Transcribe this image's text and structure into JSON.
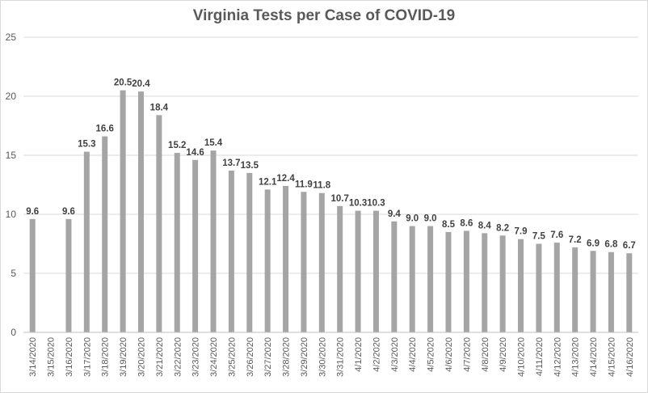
{
  "chart_data": {
    "type": "bar",
    "title": "Virginia Tests per Case of COVID-19",
    "xlabel": "",
    "ylabel": "",
    "ylim": [
      0,
      25
    ],
    "yticks": [
      0,
      5,
      10,
      15,
      20,
      25
    ],
    "grid": true,
    "legend": "none",
    "bar_color": "#a5a5a5",
    "categories": [
      "3/14/2020",
      "3/15/2020",
      "3/16/2020",
      "3/17/2020",
      "3/18/2020",
      "3/19/2020",
      "3/20/2020",
      "3/21/2020",
      "3/22/2020",
      "3/23/2020",
      "3/24/2020",
      "3/25/2020",
      "3/26/2020",
      "3/27/2020",
      "3/28/2020",
      "3/29/2020",
      "3/30/2020",
      "3/31/2020",
      "4/1/2020",
      "4/2/2020",
      "4/3/2020",
      "4/4/2020",
      "4/5/2020",
      "4/6/2020",
      "4/7/2020",
      "4/8/2020",
      "4/9/2020",
      "4/10/2020",
      "4/11/2020",
      "4/12/2020",
      "4/13/2020",
      "4/14/2020",
      "4/15/2020",
      "4/16/2020"
    ],
    "values": [
      9.6,
      null,
      9.6,
      15.3,
      16.6,
      20.5,
      20.4,
      18.4,
      15.2,
      14.6,
      15.4,
      13.7,
      13.5,
      12.1,
      12.4,
      11.9,
      11.8,
      10.7,
      10.3,
      10.3,
      9.4,
      9.0,
      9.0,
      8.5,
      8.6,
      8.4,
      8.2,
      7.9,
      7.5,
      7.6,
      7.2,
      6.9,
      6.8,
      6.7
    ],
    "data_labels": [
      "9.6",
      "",
      "9.6",
      "15.3",
      "16.6",
      "20.5",
      "20.4",
      "18.4",
      "15.2",
      "14.6",
      "15.4",
      "13.7",
      "13.5",
      "12.1",
      "12.4",
      "11.9",
      "11.8",
      "10.7",
      "10.3",
      "10.3",
      "9.4",
      "9.0",
      "9.0",
      "8.5",
      "8.6",
      "8.4",
      "8.2",
      "7.9",
      "7.5",
      "7.6",
      "7.2",
      "6.9",
      "6.8",
      "6.7"
    ]
  }
}
